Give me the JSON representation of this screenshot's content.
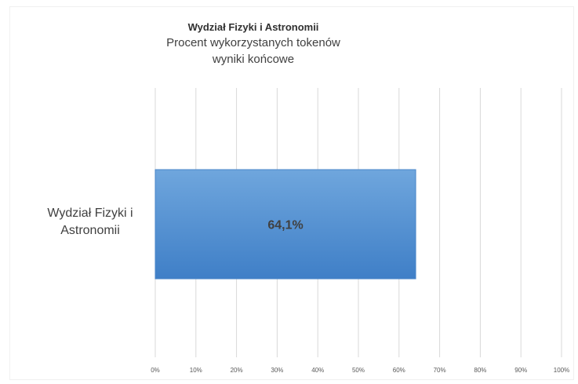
{
  "chart_data": {
    "type": "bar",
    "orientation": "horizontal",
    "title": "Wydział Fizyki i Astronomii",
    "subtitle_lines": [
      "Procent wykorzystanych tokenów",
      "wyniki końcowe"
    ],
    "categories": [
      "Wydział Fizyki i Astronomii"
    ],
    "category_label_lines": [
      "Wydział Fizyki i",
      "Astronomii"
    ],
    "values": [
      64.1
    ],
    "data_labels": [
      "64,1%"
    ],
    "xlim": [
      0,
      100
    ],
    "x_ticks": [
      "0%",
      "10%",
      "20%",
      "30%",
      "40%",
      "50%",
      "60%",
      "70%",
      "80%",
      "90%",
      "100%"
    ],
    "grid": true,
    "legend": "none",
    "bar_color": "#5b9bd5"
  }
}
